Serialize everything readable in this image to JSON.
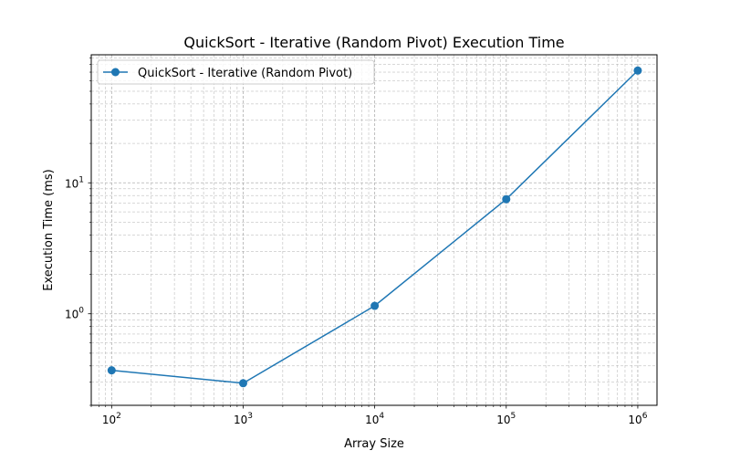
{
  "chart_data": {
    "type": "line",
    "title": "QuickSort - Iterative (Random Pivot) Execution Time",
    "xlabel": "Array Size",
    "ylabel": "Execution Time (ms)",
    "x_scale": "log",
    "y_scale": "log",
    "xlim": [
      70,
      1400000
    ],
    "ylim": [
      0.2,
      95
    ],
    "grid": true,
    "grid_style": "dashed, major and minor",
    "legend_position": "top-left",
    "x_ticks": [
      {
        "value": 100,
        "base": "10",
        "exp": "2"
      },
      {
        "value": 1000,
        "base": "10",
        "exp": "3"
      },
      {
        "value": 10000,
        "base": "10",
        "exp": "4"
      },
      {
        "value": 100000,
        "base": "10",
        "exp": "5"
      },
      {
        "value": 1000000,
        "base": "10",
        "exp": "6"
      }
    ],
    "y_ticks": [
      {
        "value": 1,
        "base": "10",
        "exp": "0"
      },
      {
        "value": 10,
        "base": "10",
        "exp": "1"
      }
    ],
    "series": [
      {
        "name": "QuickSort - Iterative (Random Pivot)",
        "color": "#1f77b4",
        "marker": "circle",
        "x": [
          100,
          1000,
          10000,
          100000,
          1000000
        ],
        "y": [
          0.37,
          0.295,
          1.15,
          7.5,
          72
        ]
      }
    ]
  }
}
